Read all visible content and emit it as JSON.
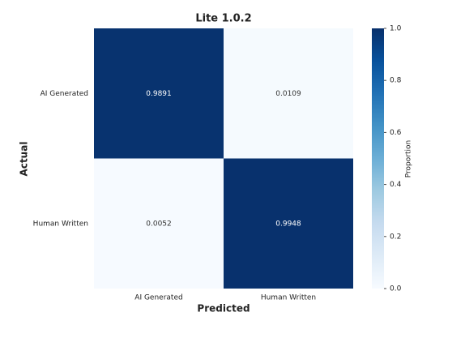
{
  "chart_data": {
    "type": "heatmap",
    "title": "Lite 1.0.2",
    "x_label": "Predicted",
    "y_label": "Actual",
    "x_categories": [
      "AI Generated",
      "Human Written"
    ],
    "y_categories": [
      "AI Generated",
      "Human Written"
    ],
    "values": [
      [
        0.9891,
        0.0109
      ],
      [
        0.0052,
        0.9948
      ]
    ],
    "colormap": "Blues",
    "colorbar_label": "Proportion",
    "clim": [
      0,
      1
    ],
    "cticks": [
      {
        "value": 0,
        "label": "0.0"
      },
      0.2,
      0.4,
      0.6,
      0.8,
      {
        "value": 1,
        "label": "1.0"
      }
    ]
  }
}
